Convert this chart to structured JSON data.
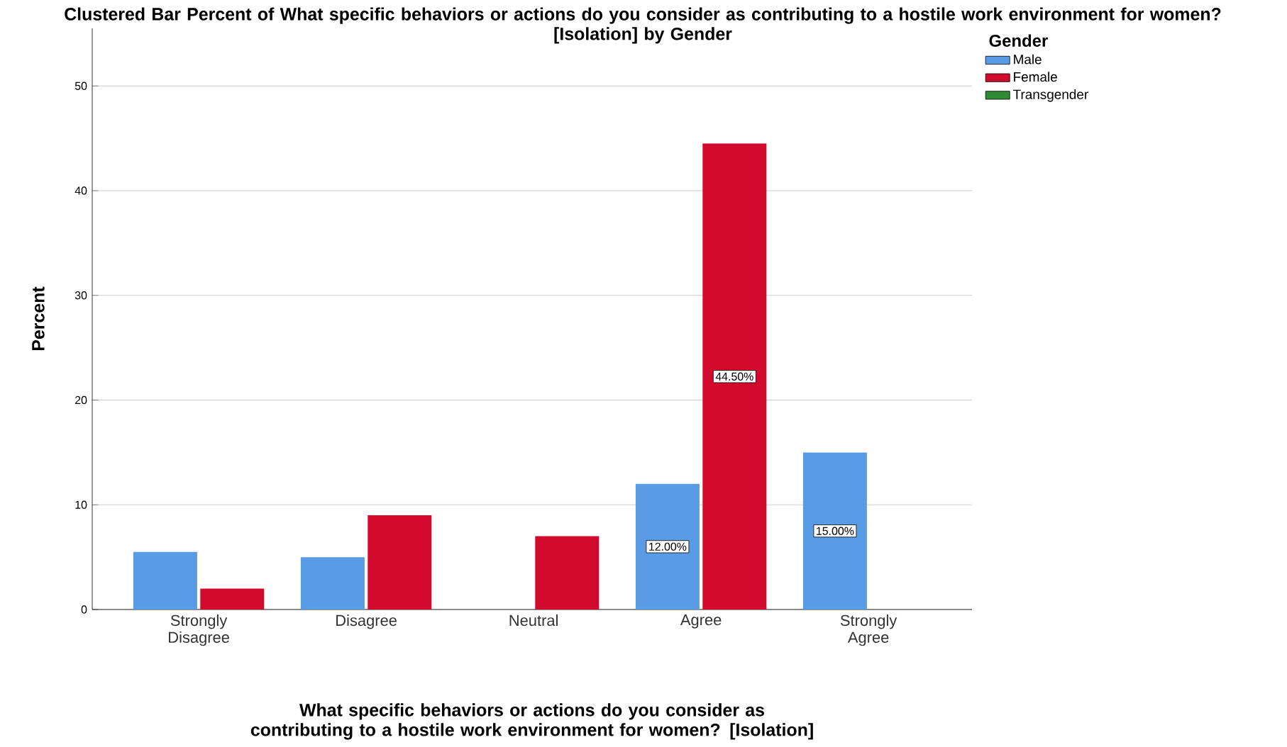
{
  "chart_data": {
    "type": "bar",
    "title": "Clustered Bar Percent of What specific behaviors or actions do you consider as contributing to a hostile work environment for women?  [Isolation] by Gender",
    "xlabel": "What specific behaviors or actions do you consider as contributing to a hostile work environment for women?  [Isolation]",
    "ylabel": "Percent",
    "legend_title": "Gender",
    "categories": [
      "Strongly Disagree",
      "Disagree",
      "Neutral",
      "Agree",
      "Strongly Agree"
    ],
    "series": [
      {
        "name": "Male",
        "color": "#5a9be6",
        "values": [
          5.5,
          5,
          null,
          12,
          15
        ],
        "value_labels": [
          null,
          null,
          null,
          "12.00%",
          "15.00%"
        ]
      },
      {
        "name": "Female",
        "color": "#d10a2e",
        "values": [
          2,
          9,
          7,
          44.5,
          null
        ],
        "value_labels": [
          null,
          null,
          null,
          "44.50%",
          null
        ]
      },
      {
        "name": "Transgender",
        "color": "#2e8b34",
        "values": [
          null,
          null,
          null,
          null,
          null
        ]
      }
    ],
    "ylim": [
      0,
      55.5
    ],
    "yticks": [
      0,
      10,
      20,
      30,
      40,
      50
    ],
    "grid": "y",
    "legend": "top right"
  }
}
